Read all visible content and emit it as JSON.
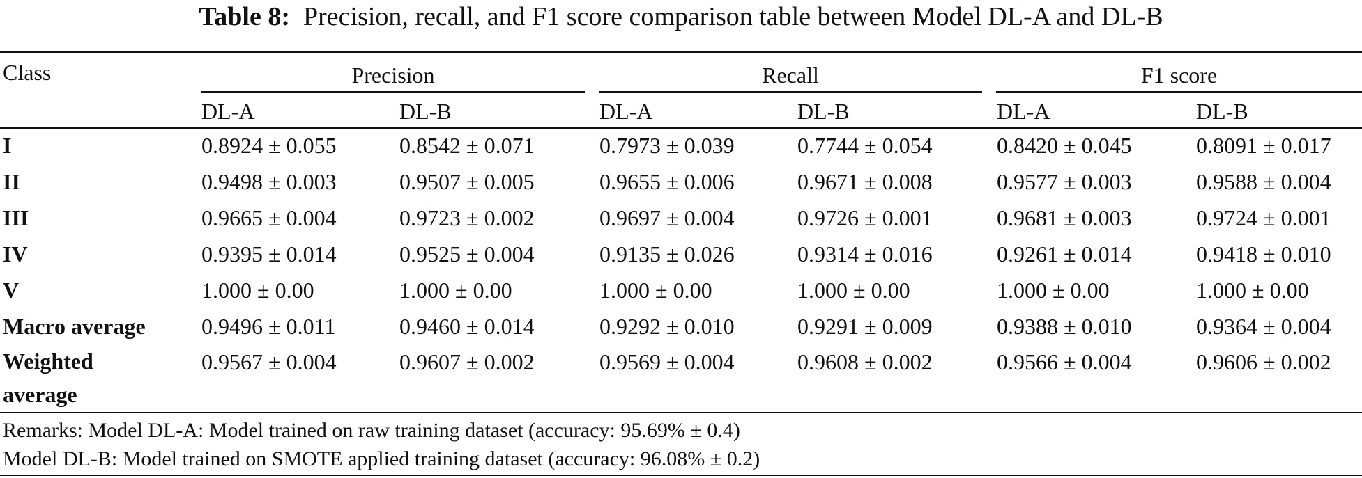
{
  "table": {
    "caption_label": "Table 8:",
    "caption_text": "Precision, recall, and F1 score comparison table between Model DL-A and DL-B",
    "class_header": "Class",
    "groups": [
      "Precision",
      "Recall",
      "F1 score"
    ],
    "subheaders": [
      "DL-A",
      "DL-B",
      "DL-A",
      "DL-B",
      "DL-A",
      "DL-B"
    ],
    "rows": [
      {
        "label": "I",
        "values": [
          "0.8924 ± 0.055",
          "0.8542 ± 0.071",
          "0.7973 ± 0.039",
          "0.7744 ± 0.054",
          "0.8420 ± 0.045",
          "0.8091 ± 0.017"
        ]
      },
      {
        "label": "II",
        "values": [
          "0.9498 ± 0.003",
          "0.9507 ± 0.005",
          "0.9655 ± 0.006",
          "0.9671 ± 0.008",
          "0.9577 ± 0.003",
          "0.9588 ± 0.004"
        ]
      },
      {
        "label": "III",
        "values": [
          "0.9665 ± 0.004",
          "0.9723 ± 0.002",
          "0.9697 ± 0.004",
          "0.9726 ± 0.001",
          "0.9681 ± 0.003",
          "0.9724 ± 0.001"
        ]
      },
      {
        "label": "IV",
        "values": [
          "0.9395 ± 0.014",
          "0.9525 ± 0.004",
          "0.9135 ± 0.026",
          "0.9314 ± 0.016",
          "0.9261 ± 0.014",
          "0.9418 ± 0.010"
        ]
      },
      {
        "label": "V",
        "values": [
          "1.000 ± 0.00",
          "1.000 ± 0.00",
          "1.000 ± 0.00",
          "1.000 ± 0.00",
          "1.000 ± 0.00",
          "1.000 ± 0.00"
        ]
      },
      {
        "label": "Macro average",
        "values": [
          "0.9496 ± 0.011",
          "0.9460 ± 0.014",
          "0.9292 ± 0.010",
          "0.9291 ± 0.009",
          "0.9388 ± 0.010",
          "0.9364 ± 0.004"
        ]
      },
      {
        "label_line1": "Weighted",
        "label_line2": "average",
        "values": [
          "0.9567 ± 0.004",
          "0.9607 ± 0.002",
          "0.9569 ± 0.004",
          "0.9608 ± 0.002",
          "0.9566 ± 0.004",
          "0.9606 ± 0.002"
        ]
      }
    ],
    "remarks": [
      "Remarks: Model DL-A: Model trained on raw training dataset (accuracy: 95.69% ± 0.4)",
      "Model DL-B: Model trained on SMOTE applied training dataset (accuracy: 96.08% ± 0.2)"
    ]
  }
}
